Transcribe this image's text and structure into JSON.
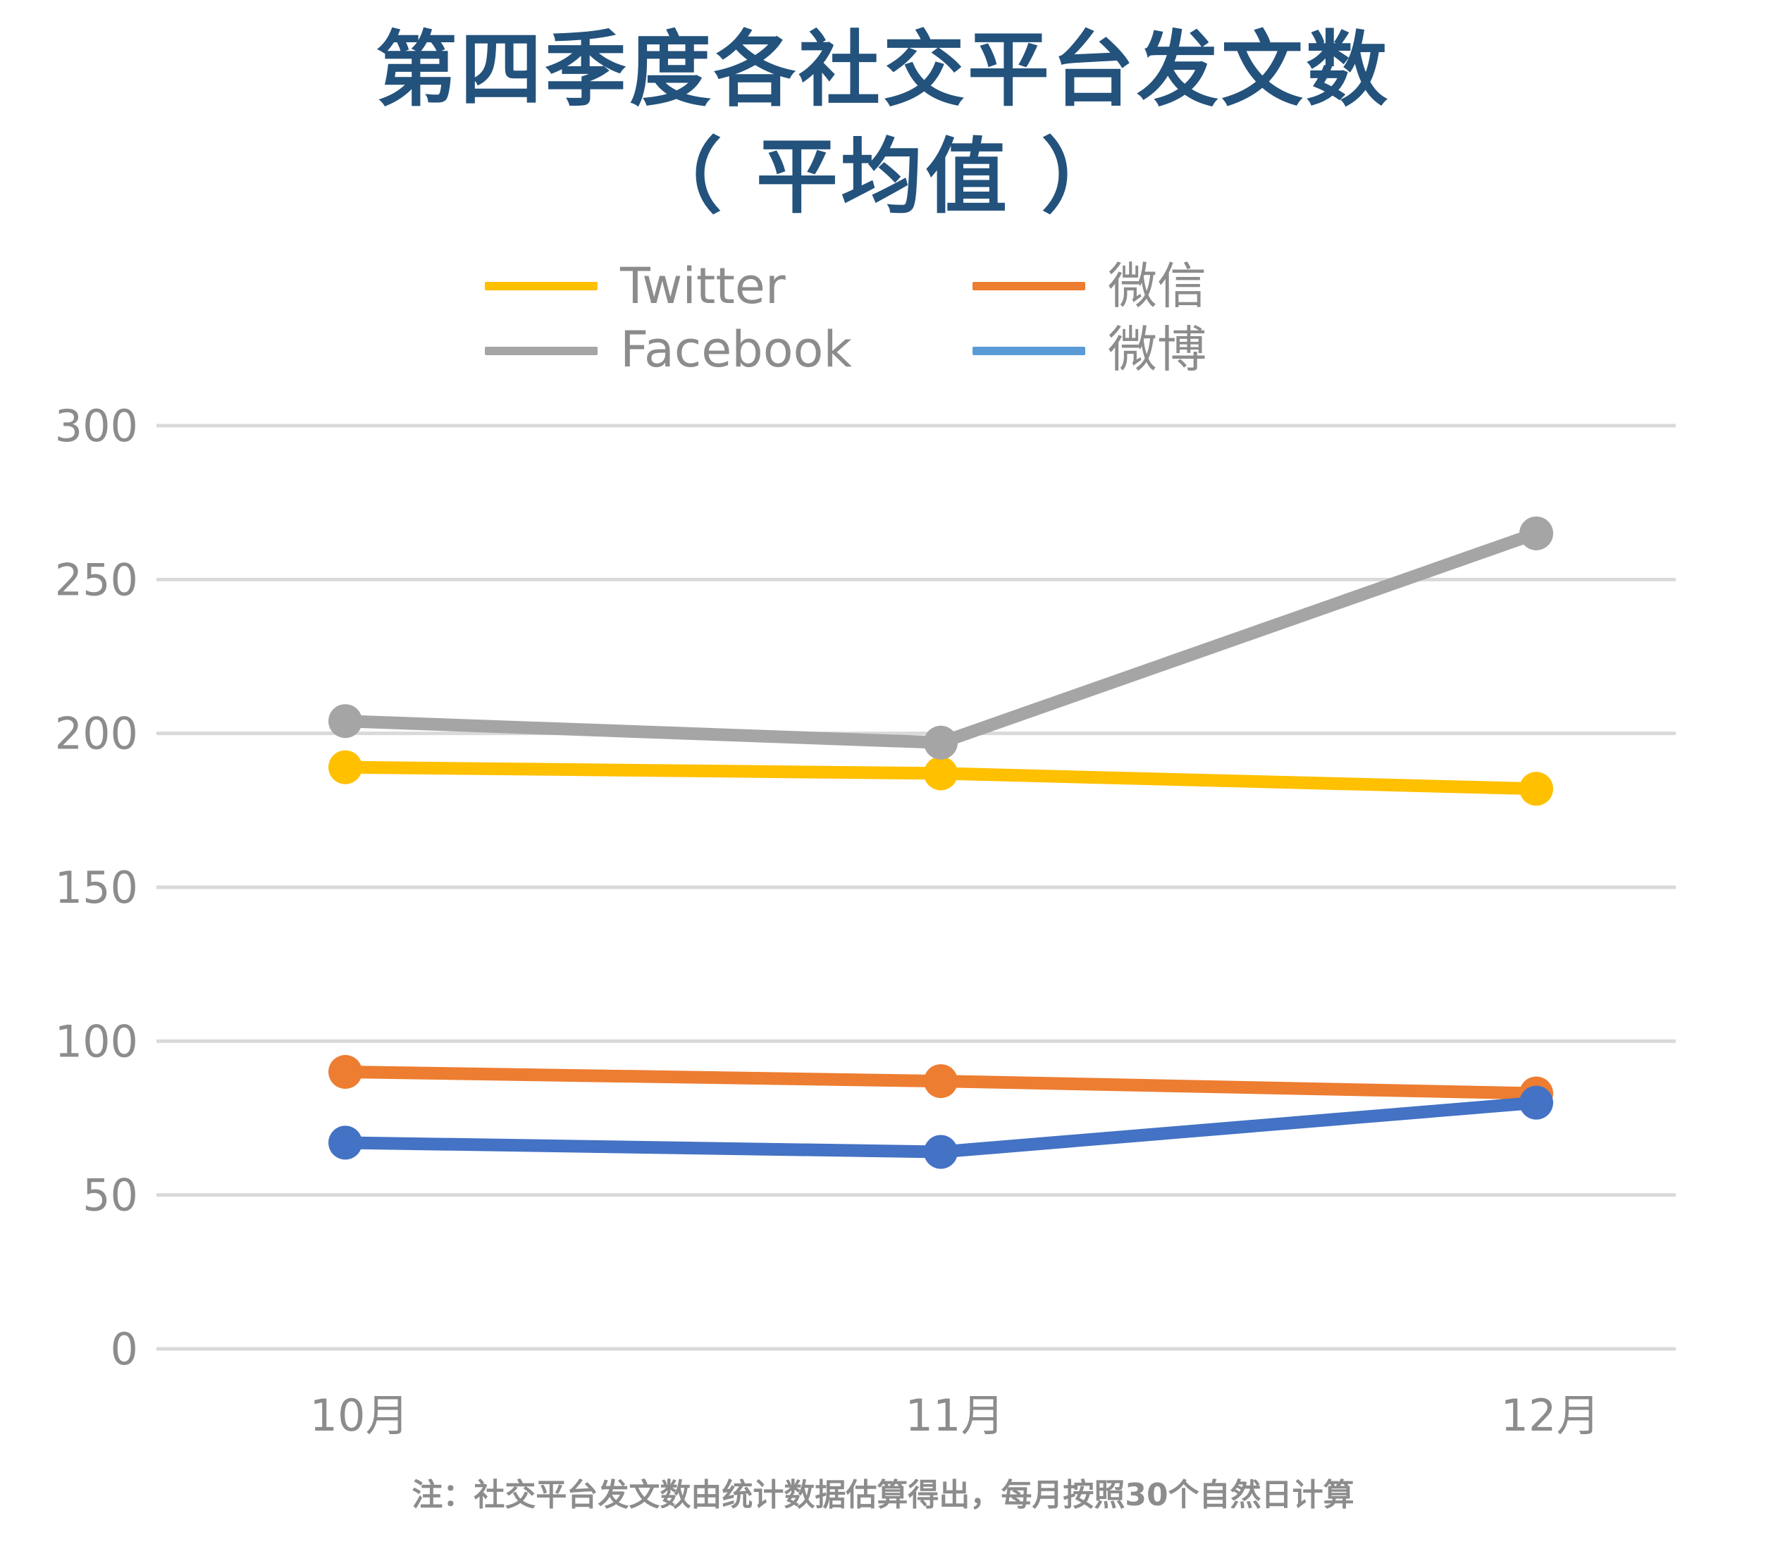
{
  "title": {
    "line1": "第四季度各社交平台发文数",
    "line2": "（ 平均值 ）"
  },
  "legend": [
    {
      "name": "Twitter",
      "color": "#ffc000"
    },
    {
      "name": "微信",
      "color": "#ed7d31"
    },
    {
      "name": "Facebook",
      "color": "#a5a5a5"
    },
    {
      "name": "微博",
      "color": "#5b9bd5"
    }
  ],
  "footnote": "注：社交平台发文数由统计数据估算得出，每月按照30个自然日计算",
  "chart_data": {
    "type": "line",
    "categories": [
      "10月",
      "11月",
      "12月"
    ],
    "series": [
      {
        "name": "Twitter",
        "color": "#ffc000",
        "values": [
          189,
          187,
          182
        ]
      },
      {
        "name": "Facebook",
        "color": "#a5a5a5",
        "values": [
          204,
          197,
          265
        ]
      },
      {
        "name": "微信",
        "color": "#ed7d31",
        "values": [
          90,
          87,
          83
        ]
      },
      {
        "name": "微博",
        "color": "#4472c4",
        "values": [
          67,
          64,
          80
        ]
      }
    ],
    "yticks": [
      "0",
      "50",
      "100",
      "150",
      "200",
      "250",
      "300"
    ],
    "ylim": [
      0,
      300
    ],
    "grid": true,
    "legend_position": "top"
  }
}
